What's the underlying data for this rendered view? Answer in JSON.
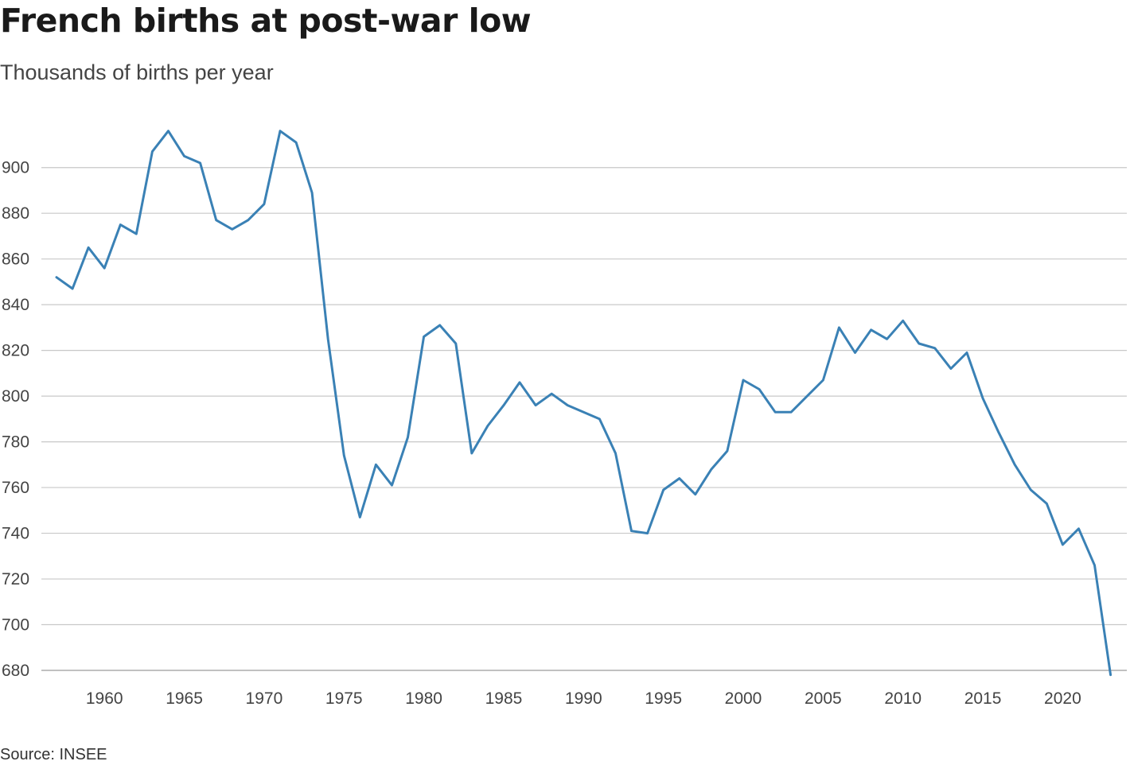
{
  "header": {
    "title": "French births at post-war low",
    "subtitle": "Thousands of births per year"
  },
  "footer": {
    "source": "Source: INSEE"
  },
  "chart_data": {
    "type": "line",
    "title": "French births at post-war low",
    "subtitle": "Thousands of births per year",
    "xlabel": "",
    "ylabel": "Thousands of births per year",
    "xlim": [
      1955.5,
      2024
    ],
    "ylim": [
      676,
      918
    ],
    "grid": "horizontal",
    "y_ticks": [
      680,
      700,
      720,
      740,
      760,
      780,
      800,
      820,
      840,
      860,
      880,
      900
    ],
    "x_ticks": [
      1960,
      1965,
      1970,
      1975,
      1980,
      1985,
      1990,
      1995,
      2000,
      2005,
      2010,
      2015,
      2020
    ],
    "color": "#3a81b5",
    "series": [
      {
        "x": [
          1957,
          1958,
          1959,
          1960,
          1961,
          1962,
          1963,
          1964,
          1965,
          1966,
          1967,
          1968,
          1969,
          1970,
          1971,
          1972,
          1973,
          1974,
          1975,
          1976,
          1977,
          1978,
          1979,
          1980,
          1981,
          1982,
          1983,
          1984,
          1985,
          1986,
          1987,
          1988,
          1989,
          1990,
          1991,
          1992,
          1993,
          1994,
          1995,
          1996,
          1997,
          1998,
          1999,
          2000,
          2001,
          2002,
          2003,
          2004,
          2005,
          2006,
          2007,
          2008,
          2009,
          2010,
          2011,
          2012,
          2013,
          2014,
          2015,
          2016,
          2017,
          2018,
          2019,
          2020,
          2021,
          2022,
          2023
        ],
        "values": [
          852,
          847,
          865,
          856,
          875,
          871,
          907,
          916,
          905,
          902,
          877,
          873,
          877,
          884,
          916,
          911,
          889,
          825,
          774,
          747,
          770,
          761,
          782,
          826,
          831,
          823,
          775,
          787,
          796,
          806,
          796,
          801,
          796,
          793,
          790,
          775,
          741,
          740,
          759,
          764,
          757,
          768,
          776,
          807,
          803,
          793,
          793,
          800,
          807,
          830,
          819,
          829,
          825,
          833,
          823,
          821,
          812,
          819,
          799,
          784,
          770,
          759,
          753,
          735,
          742,
          726,
          678
        ]
      }
    ]
  }
}
